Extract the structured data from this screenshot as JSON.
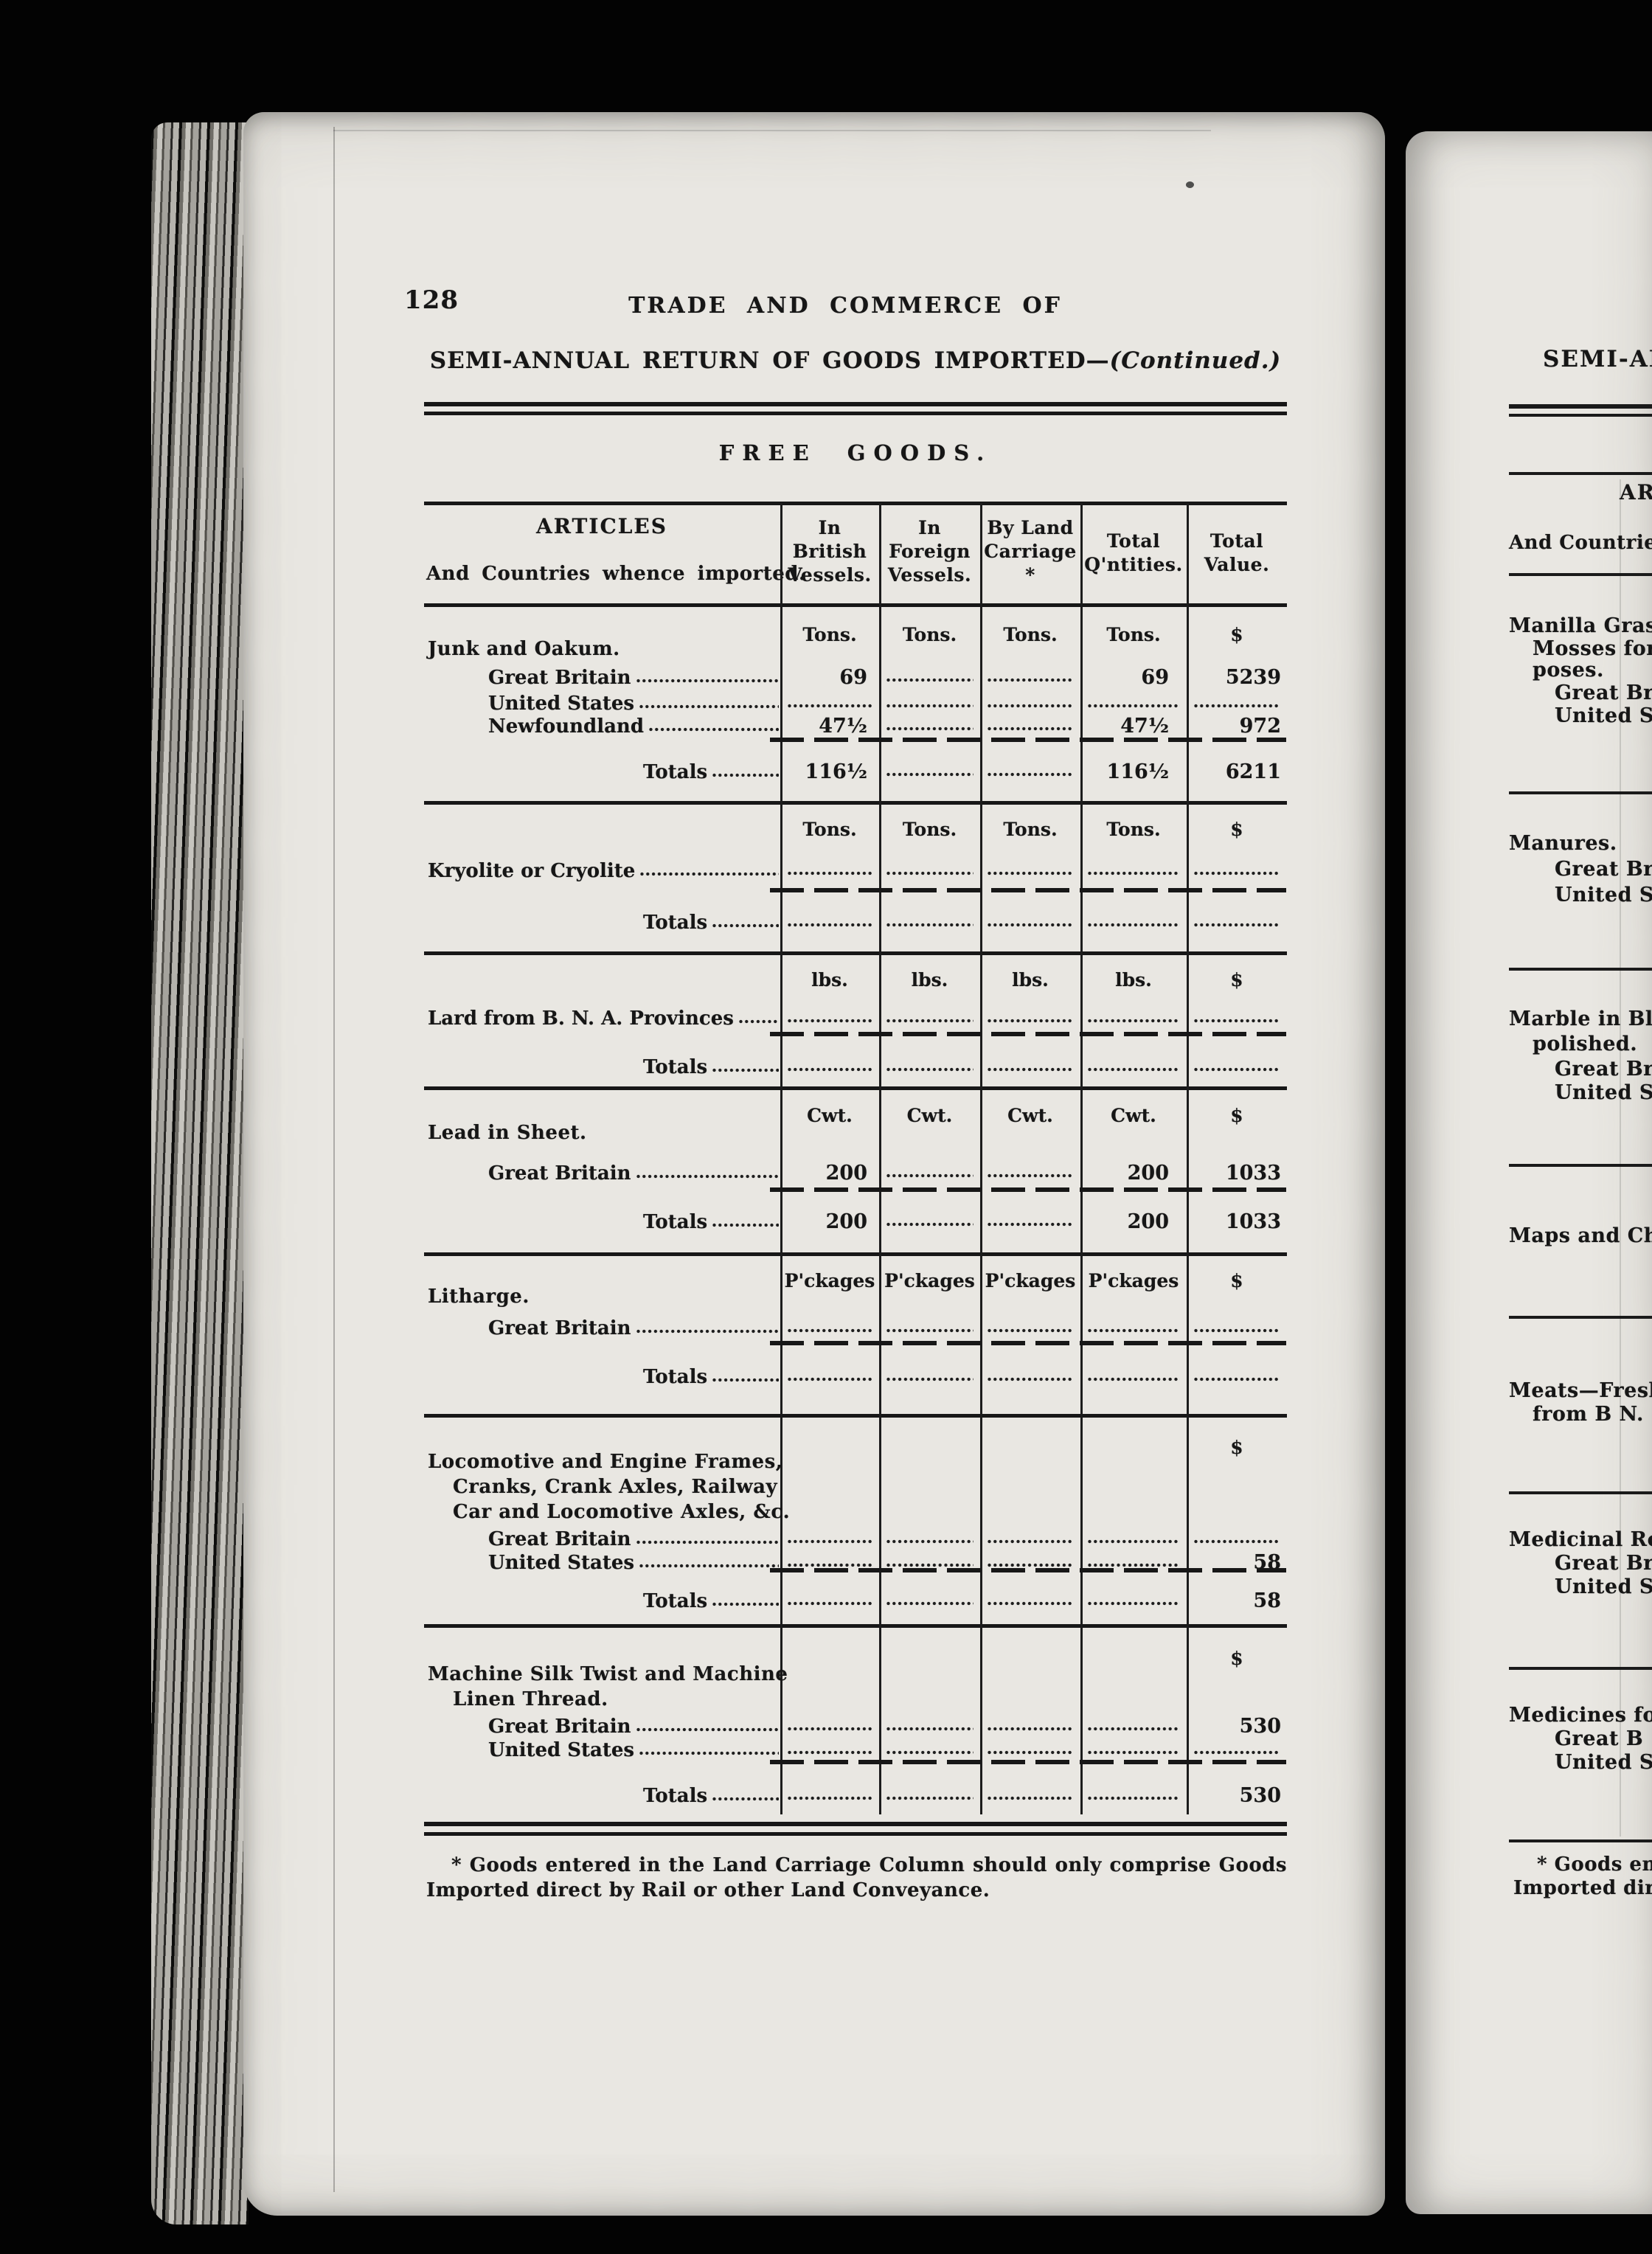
{
  "page": {
    "number": "128",
    "running_title": "TRADE AND COMMERCE OF",
    "subtitle_main": "SEMI-ANNUAL RETURN OF GOODS IMPORTED—",
    "subtitle_cont": "(Continued.)",
    "section_title": "FREE GOODS.",
    "footnote_line1": "* Goods entered in the Land Carriage Column should only comprise Goods",
    "footnote_line2": "Imported direct by Rail or other Land Conveyance."
  },
  "table": {
    "header": {
      "articles": "ARTICLES",
      "articles_sub": "And Countries whence imported.",
      "columns": [
        [
          "In",
          "British",
          "Vessels."
        ],
        [
          "In",
          "Foreign",
          "Vessels."
        ],
        [
          "By Land",
          "Carriage",
          "*"
        ],
        [
          "Total",
          "Q'ntities."
        ],
        [
          "Total",
          "Value."
        ]
      ]
    },
    "sections": [
      {
        "units": [
          "Tons.",
          "Tons.",
          "Tons.",
          "Tons.",
          "$"
        ],
        "heading_lines": [
          "Junk and Oakum."
        ],
        "rows": [
          {
            "label": "Great Britain",
            "cells": [
              "69",
              "dots",
              "dots",
              "69",
              "5239"
            ]
          },
          {
            "label": "United States",
            "cells": [
              "dots",
              "dots",
              "dots",
              "dots",
              "dots"
            ]
          },
          {
            "label": "Newfoundland",
            "cells": [
              "47½",
              "dots",
              "dots",
              "47½",
              "972"
            ]
          }
        ],
        "totals": {
          "label": "Totals",
          "cells": [
            "116½",
            "dots",
            "dots",
            "116½",
            "6211"
          ]
        }
      },
      {
        "units": [
          "Tons.",
          "Tons.",
          "Tons.",
          "Tons.",
          "$"
        ],
        "heading_lines": [],
        "rows": [
          {
            "label": "Kryolite or Cryolite",
            "cells": [
              "dots",
              "dots",
              "dots",
              "dots",
              "dots"
            ]
          }
        ],
        "totals": {
          "label": "Totals",
          "cells": [
            "dots",
            "dots",
            "dots",
            "dots",
            "dots"
          ]
        }
      },
      {
        "units": [
          "lbs.",
          "lbs.",
          "lbs.",
          "lbs.",
          "$"
        ],
        "heading_lines": [],
        "rows": [
          {
            "label": "Lard from B. N. A. Provinces",
            "cells": [
              "dots",
              "dots",
              "dots",
              "dots",
              "dots"
            ]
          }
        ],
        "totals": {
          "label": "Totals",
          "cells": [
            "dots",
            "dots",
            "dots",
            "dots",
            "dots"
          ]
        }
      },
      {
        "units": [
          "Cwt.",
          "Cwt.",
          "Cwt.",
          "Cwt.",
          "$"
        ],
        "heading_lines": [
          "Lead in Sheet."
        ],
        "rows": [
          {
            "label": "Great Britain",
            "cells": [
              "200",
              "dots",
              "dots",
              "200",
              "1033"
            ]
          }
        ],
        "totals": {
          "label": "Totals",
          "cells": [
            "200",
            "dots",
            "dots",
            "200",
            "1033"
          ]
        }
      },
      {
        "units": [
          "P'ckages",
          "P'ckages",
          "P'ckages",
          "P'ckages",
          "$"
        ],
        "heading_lines": [
          "Litharge."
        ],
        "rows": [
          {
            "label": "Great Britain",
            "cells": [
              "dots",
              "dots",
              "dots",
              "dots",
              "dots"
            ]
          }
        ],
        "totals": {
          "label": "Totals",
          "cells": [
            "dots",
            "dots",
            "dots",
            "dots",
            "dots"
          ]
        }
      },
      {
        "units": [
          "",
          "",
          "",
          "",
          "$"
        ],
        "heading_lines": [
          "Locomotive and Engine Frames,",
          "Cranks, Crank Axles, Railway",
          "Car and Locomotive Axles, &c."
        ],
        "rows": [
          {
            "label": "Great Britain",
            "cells": [
              "dots",
              "dots",
              "dots",
              "dots",
              "dots"
            ]
          },
          {
            "label": "United States",
            "cells": [
              "dots",
              "dots",
              "dots",
              "dots",
              "58"
            ]
          }
        ],
        "totals": {
          "label": "Totals",
          "cells": [
            "dots",
            "dots",
            "dots",
            "dots",
            "58"
          ]
        }
      },
      {
        "units": [
          "",
          "",
          "",
          "",
          "$"
        ],
        "heading_lines": [
          "Machine Silk Twist and Machine",
          "Linen Thread."
        ],
        "rows": [
          {
            "label": "Great Britain",
            "cells": [
              "dots",
              "dots",
              "dots",
              "dots",
              "530"
            ]
          },
          {
            "label": "United States",
            "cells": [
              "dots",
              "dots",
              "dots",
              "dots",
              "dots"
            ]
          }
        ],
        "totals": {
          "label": "Totals",
          "cells": [
            "dots",
            "dots",
            "dots",
            "dots",
            "530"
          ]
        }
      }
    ]
  },
  "right_page": {
    "title": "SEMI-AN",
    "header_articles": "AR",
    "header_sub": "And Countrie",
    "items": [
      "Manilla Gras",
      "Mosses for",
      "poses.",
      "Great Bri",
      "United St",
      "Manures.",
      "Great Bri",
      "United St",
      "Marble in Bl",
      "polished.",
      "Great Bri",
      "United St",
      "Maps and Ch",
      "Meats—Fresh",
      "from B N.",
      "Medicinal Ro",
      "Great Br",
      "United S",
      "Medicines fo",
      "Great B",
      "United S"
    ],
    "footnote_line1": "* Goods en",
    "footnote_line2": "Imported dir"
  },
  "colors": {
    "paper": "#e9e7e2",
    "ink": "#161616",
    "scan_background": "#030303"
  }
}
